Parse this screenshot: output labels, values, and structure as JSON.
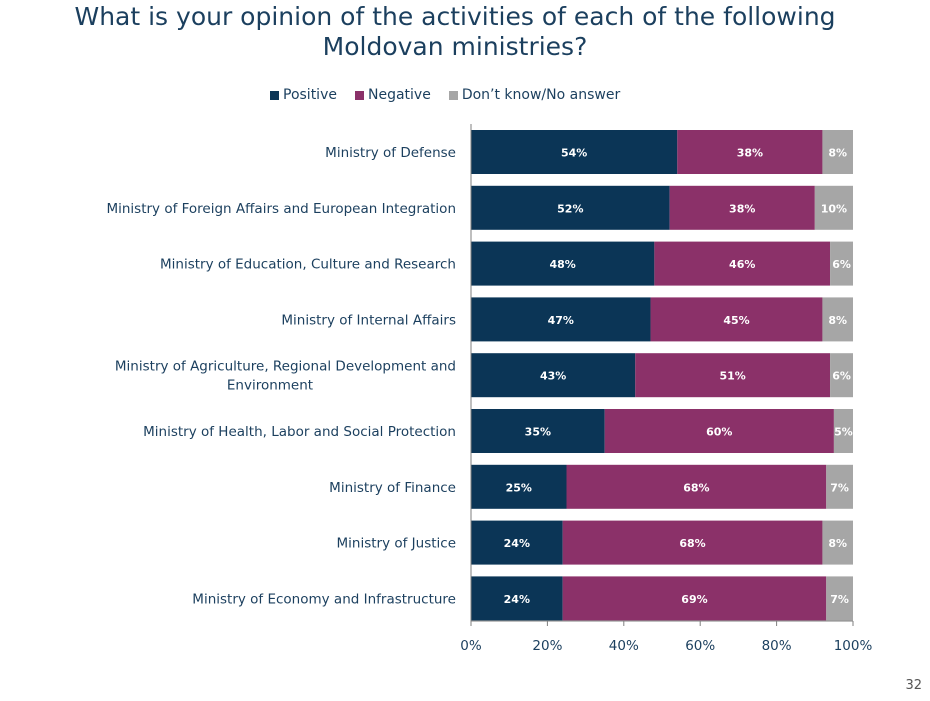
{
  "title_lines": [
    "What is your opinion of the activities of each of the following",
    "Moldovan ministries?"
  ],
  "page_number": "32",
  "colors": {
    "positive": "#0b3556",
    "negative": "#8b3169",
    "dont_know": "#a6a6a6",
    "title": "#1b3f5e",
    "label": "#1b3f5e"
  },
  "chart_data": {
    "type": "bar",
    "orientation": "horizontal",
    "stacked": true,
    "categories": [
      "Ministry of Defense",
      "Ministry of Foreign Affairs and European Integration",
      "Ministry of Education, Culture and Research",
      "Ministry of Internal Affairs",
      "Ministry of Agriculture, Regional Development and Environment",
      "Ministry of Health, Labor and Social Protection",
      "Ministry of Finance",
      "Ministry of Justice",
      "Ministry of Economy and Infrastructure"
    ],
    "category_label_lines": [
      [
        "Ministry of Defense"
      ],
      [
        "Ministry of Foreign Affairs and European Integration"
      ],
      [
        "Ministry of Education, Culture and Research"
      ],
      [
        "Ministry of Internal Affairs"
      ],
      [
        "Ministry of Agriculture, Regional Development and",
        "Environment"
      ],
      [
        "Ministry of Health, Labor and Social Protection"
      ],
      [
        "Ministry of Finance"
      ],
      [
        "Ministry of Justice"
      ],
      [
        "Ministry of Economy and Infrastructure"
      ]
    ],
    "series": [
      {
        "name": "Positive",
        "values": [
          54,
          52,
          48,
          47,
          43,
          35,
          25,
          24,
          24
        ],
        "labels": [
          "54%",
          "52%",
          "48%",
          "47%",
          "43%",
          "35%",
          "25%",
          "24%",
          "24%"
        ]
      },
      {
        "name": "Negative",
        "values": [
          38,
          38,
          46,
          45,
          51,
          60,
          68,
          68,
          69
        ],
        "labels": [
          "38%",
          "38%",
          "46%",
          "45%",
          "51%",
          "60%",
          "68%",
          "68%",
          "69%"
        ]
      },
      {
        "name": "Don’t know/No answer",
        "values": [
          8,
          10,
          6,
          8,
          6,
          5,
          7,
          8,
          7
        ],
        "labels": [
          "8%",
          "10%",
          "6%",
          "8%",
          "6%",
          "5%",
          "7%",
          "8%",
          "7%"
        ]
      }
    ],
    "x_ticks": [
      "0%",
      "20%",
      "40%",
      "60%",
      "80%",
      "100%"
    ],
    "xlim": [
      0,
      100
    ],
    "legend_position": "top",
    "grid": false
  }
}
